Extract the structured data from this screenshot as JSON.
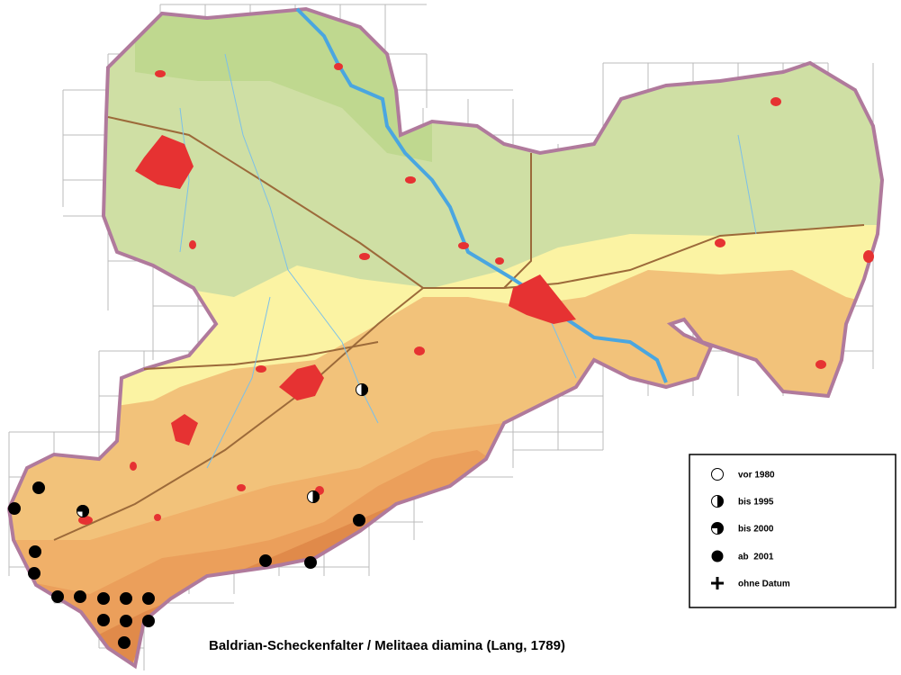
{
  "title": "Baldrian-Scheckenfalter / Melitaea diamina (Lang, 1789)",
  "legend": {
    "items": [
      {
        "label": "vor 1980"
      },
      {
        "label": "bis 1995"
      },
      {
        "label": "bis 2000"
      },
      {
        "label": "ab  2001"
      },
      {
        "label": "ohne Datum"
      }
    ]
  }
}
